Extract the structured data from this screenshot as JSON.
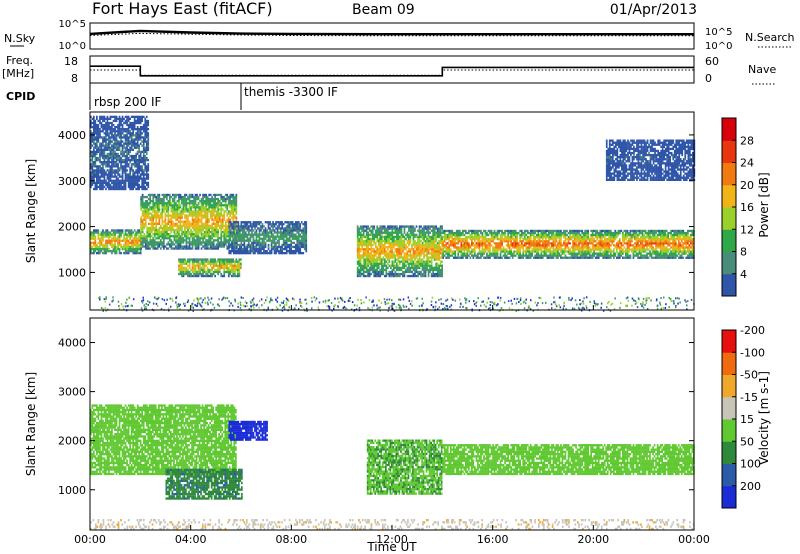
{
  "header": {
    "station": "Fort Hays East (fitACF)",
    "beam": "Beam 09",
    "date": "01/Apr/2013"
  },
  "noise_panel": {
    "left_label": "N.Sky",
    "right_label": "N.Search",
    "left_ticks": [
      "10^5",
      "10^0"
    ],
    "right_ticks": [
      "10^5",
      "10^0"
    ]
  },
  "freq_panel": {
    "left_label_1": "Freq.",
    "left_label_2": "[MHz]",
    "right_label": "Nave",
    "left_ticks": [
      "18",
      "8"
    ],
    "right_ticks": [
      "60",
      "0"
    ]
  },
  "cpid": {
    "label": "CPID",
    "entries": [
      "rbsp 200 IF",
      "themis -3300 IF"
    ]
  },
  "axes": {
    "ylabel": "Slant Range [km]",
    "yticks": [
      "1000",
      "2000",
      "3000",
      "4000"
    ],
    "xlabel": "Time UT",
    "xticks": [
      "00:00",
      "04:00",
      "08:00",
      "12:00",
      "16:00",
      "20:00",
      "00:00"
    ]
  },
  "colors": {
    "power": [
      "#1a2cd8",
      "#2f55a8",
      "#4a8c7a",
      "#2fa84a",
      "#9ad02a",
      "#f0b418",
      "#f07a10",
      "#e8360e",
      "#d8000a"
    ],
    "velocity": [
      "#e8100e",
      "#f06a10",
      "#f0a82a",
      "#c8c4b8",
      "#60c830",
      "#2e8a3a",
      "#2a5aa8",
      "#1a2cd8"
    ]
  },
  "chart_data": [
    {
      "type": "line",
      "title": "Noise (N.Sky / N.Search)",
      "x": [
        "00:00",
        "02:00",
        "04:00",
        "06:00",
        "08:00",
        "12:00",
        "16:00",
        "20:00",
        "24:00"
      ],
      "series": [
        {
          "name": "N.Sky",
          "values": [
            800,
            3000,
            1500,
            900,
            800,
            700,
            700,
            700,
            700
          ]
        },
        {
          "name": "N.Search",
          "values": [
            400,
            1000,
            700,
            500,
            400,
            350,
            350,
            350,
            350
          ]
        }
      ],
      "ylim": [
        "10^0",
        "10^5"
      ],
      "yscale": "log"
    },
    {
      "type": "line",
      "title": "Freq. [MHz] / Nave",
      "x": [
        "00:00",
        "02:00",
        "02:00",
        "14:00",
        "14:00",
        "24:00"
      ],
      "series": [
        {
          "name": "Freq.",
          "values": [
            15,
            15,
            11,
            11,
            14.5,
            14.5
          ]
        },
        {
          "name": "Nave",
          "values": [
            30,
            30,
            18,
            18,
            30,
            30
          ]
        }
      ],
      "ylim": [
        8,
        18
      ],
      "y2lim": [
        0,
        60
      ]
    },
    {
      "type": "heatmap",
      "title": "Power [dB]",
      "ylabel": "Slant Range [km]",
      "xlabel": "Time UT",
      "xlim": [
        "00:00",
        "24:00"
      ],
      "ylim": [
        180,
        4500
      ],
      "colorbar": {
        "label": "Power [dB]",
        "ticks": [
          4,
          8,
          12,
          16,
          20,
          24,
          28
        ],
        "range": [
          0,
          32
        ]
      },
      "features": [
        {
          "t": [
            0.0,
            2.0
          ],
          "range": [
            1400,
            1900
          ],
          "power": 24
        },
        {
          "t": [
            2.0,
            5.8
          ],
          "range": [
            1500,
            2700
          ],
          "power": 22
        },
        {
          "t": [
            3.5,
            6.0
          ],
          "range": [
            900,
            1300
          ],
          "power": 22
        },
        {
          "t": [
            5.5,
            8.6
          ],
          "range": [
            1400,
            2100
          ],
          "power": 10
        },
        {
          "t": [
            10.6,
            14.0
          ],
          "range": [
            900,
            2000
          ],
          "power": 22
        },
        {
          "t": [
            14.0,
            24.0
          ],
          "range": [
            1300,
            1900
          ],
          "power": 26
        },
        {
          "t": [
            0.0,
            2.3
          ],
          "range": [
            2800,
            4400
          ],
          "power": 6
        },
        {
          "t": [
            20.5,
            24.0
          ],
          "range": [
            3000,
            3900
          ],
          "power": 4
        }
      ]
    },
    {
      "type": "heatmap",
      "title": "Velocity [m s-1]",
      "ylabel": "Slant Range [km]",
      "xlabel": "Time UT",
      "xlim": [
        "00:00",
        "24:00"
      ],
      "ylim": [
        180,
        4500
      ],
      "colorbar": {
        "label": "Velocity [m s-1]",
        "ticks": [
          -200,
          -100,
          -50,
          -15,
          15,
          50,
          100,
          200
        ],
        "range": [
          -250,
          250
        ]
      },
      "features": [
        {
          "t": [
            0.0,
            5.8
          ],
          "range": [
            1300,
            2700
          ],
          "velocity": 0
        },
        {
          "t": [
            3.0,
            6.0
          ],
          "range": [
            800,
            1400
          ],
          "velocity": 40
        },
        {
          "t": [
            5.5,
            7.0
          ],
          "range": [
            2000,
            2400
          ],
          "velocity": 150
        },
        {
          "t": [
            11.0,
            14.0
          ],
          "range": [
            900,
            2000
          ],
          "velocity": 10
        },
        {
          "t": [
            14.0,
            24.0
          ],
          "range": [
            1300,
            1900
          ],
          "velocity": 0
        },
        {
          "t": [
            0.0,
            24.0
          ],
          "range": [
            180,
            400
          ],
          "velocity": -40
        }
      ]
    }
  ]
}
